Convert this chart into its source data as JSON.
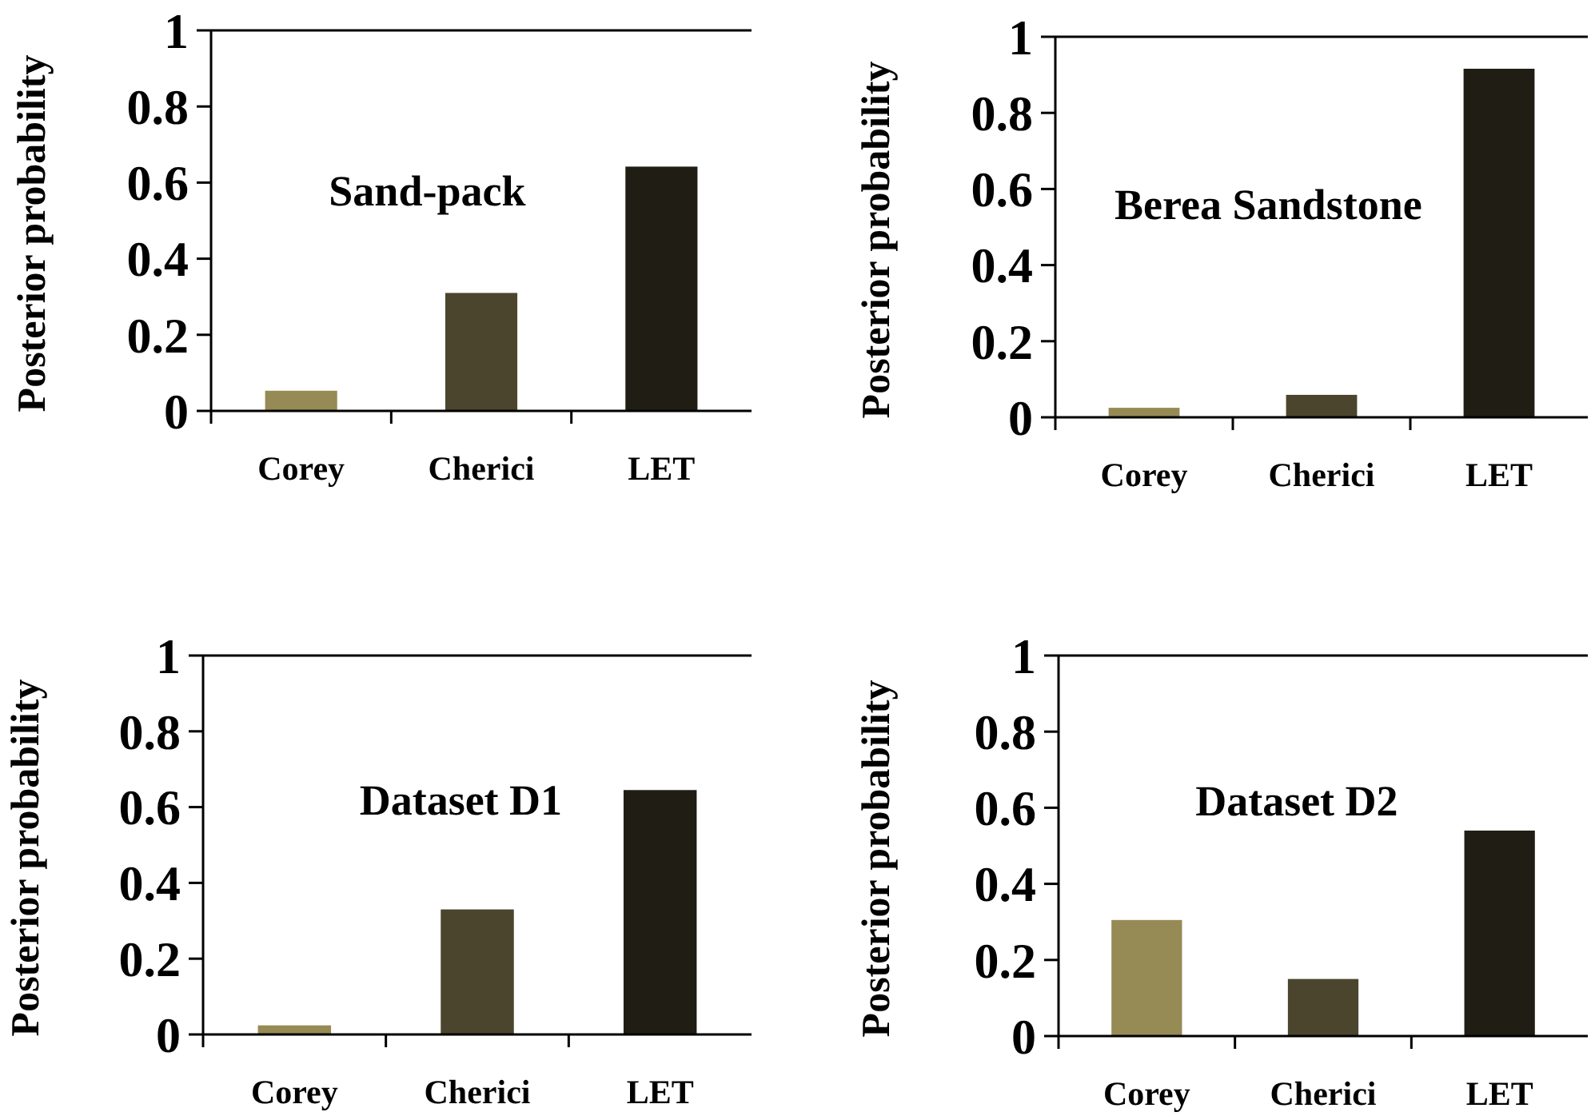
{
  "chart_data": [
    {
      "type": "bar",
      "title": "Sand-pack",
      "ylabel": "Posterior probability",
      "categories": [
        "Corey",
        "Cherici",
        "LET"
      ],
      "values": [
        0.053,
        0.31,
        0.642
      ],
      "colors": [
        "#968a55",
        "#4b452e",
        "#201e14"
      ],
      "ylim": [
        0,
        1
      ],
      "yticks": [
        {
          "value": 0,
          "label": "0"
        },
        {
          "value": 0.2,
          "label": "0.2"
        },
        {
          "value": 0.4,
          "label": "0.4"
        },
        {
          "value": 0.6,
          "label": "0.6"
        },
        {
          "value": 0.8,
          "label": "0.8"
        },
        {
          "value": 1,
          "label": "1"
        }
      ]
    },
    {
      "type": "bar",
      "title": "Berea Sandstone",
      "ylabel": "Posterior probability",
      "categories": [
        "Corey",
        "Cherici",
        "LET"
      ],
      "values": [
        0.025,
        0.059,
        0.916
      ],
      "colors": [
        "#968a55",
        "#4b452e",
        "#201e14"
      ],
      "ylim": [
        0,
        1
      ],
      "yticks": [
        {
          "value": 0,
          "label": "0"
        },
        {
          "value": 0.2,
          "label": "0.2"
        },
        {
          "value": 0.4,
          "label": "0.4"
        },
        {
          "value": 0.6,
          "label": "0.6"
        },
        {
          "value": 0.8,
          "label": "0.8"
        },
        {
          "value": 1,
          "label": "1"
        }
      ]
    },
    {
      "type": "bar",
      "title": "Dataset D1",
      "ylabel": "Posterior probability",
      "categories": [
        "Corey",
        "Cherici",
        "LET"
      ],
      "values": [
        0.024,
        0.33,
        0.645
      ],
      "colors": [
        "#968a55",
        "#4b452e",
        "#201e14"
      ],
      "ylim": [
        0,
        1
      ],
      "yticks": [
        {
          "value": 0,
          "label": "0"
        },
        {
          "value": 0.2,
          "label": "0.2"
        },
        {
          "value": 0.4,
          "label": "0.4"
        },
        {
          "value": 0.6,
          "label": "0.6"
        },
        {
          "value": 0.8,
          "label": "0.8"
        },
        {
          "value": 1,
          "label": "1"
        }
      ]
    },
    {
      "type": "bar",
      "title": "Dataset D2",
      "ylabel": "Posterior probability",
      "categories": [
        "Corey",
        "Cherici",
        "LET"
      ],
      "values": [
        0.305,
        0.15,
        0.54
      ],
      "colors": [
        "#968a55",
        "#4b452e",
        "#201e14"
      ],
      "ylim": [
        0,
        1
      ],
      "yticks": [
        {
          "value": 0,
          "label": "0"
        },
        {
          "value": 0.2,
          "label": "0.2"
        },
        {
          "value": 0.4,
          "label": "0.4"
        },
        {
          "value": 0.6,
          "label": "0.6"
        },
        {
          "value": 0.8,
          "label": "0.8"
        },
        {
          "value": 1,
          "label": "1"
        }
      ]
    }
  ]
}
